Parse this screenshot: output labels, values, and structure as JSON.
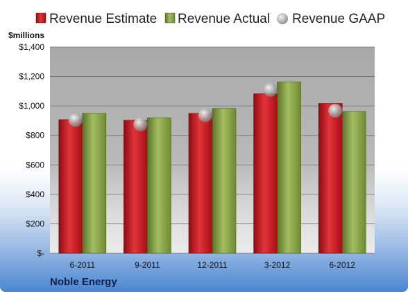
{
  "chart_data": {
    "type": "bar",
    "title": "",
    "company": "Noble Energy",
    "unit_label": "$millions",
    "categories": [
      "6-2011",
      "9-2011",
      "12-2011",
      "3-2012",
      "6-2012"
    ],
    "series": [
      {
        "name": "Revenue Estimate",
        "type": "bar",
        "color": "#c8141c",
        "values": [
          907,
          903,
          950,
          1083,
          1017
        ]
      },
      {
        "name": "Revenue Actual",
        "type": "bar",
        "color": "#7f9a3e",
        "values": [
          950,
          920,
          983,
          1163,
          963
        ]
      },
      {
        "name": "Revenue GAAP",
        "type": "marker",
        "color": "#a9a9a9",
        "values": [
          905,
          875,
          937,
          1110,
          967
        ]
      }
    ],
    "ylim": [
      0,
      1400
    ],
    "yticks": [
      0,
      200,
      400,
      600,
      800,
      1000,
      1200,
      1400
    ],
    "ytick_labels": [
      "$-",
      "$200",
      "$400",
      "$600",
      "$800",
      "$1,000",
      "$1,200",
      "$1,400"
    ],
    "grid": true,
    "legend_position": "top"
  }
}
